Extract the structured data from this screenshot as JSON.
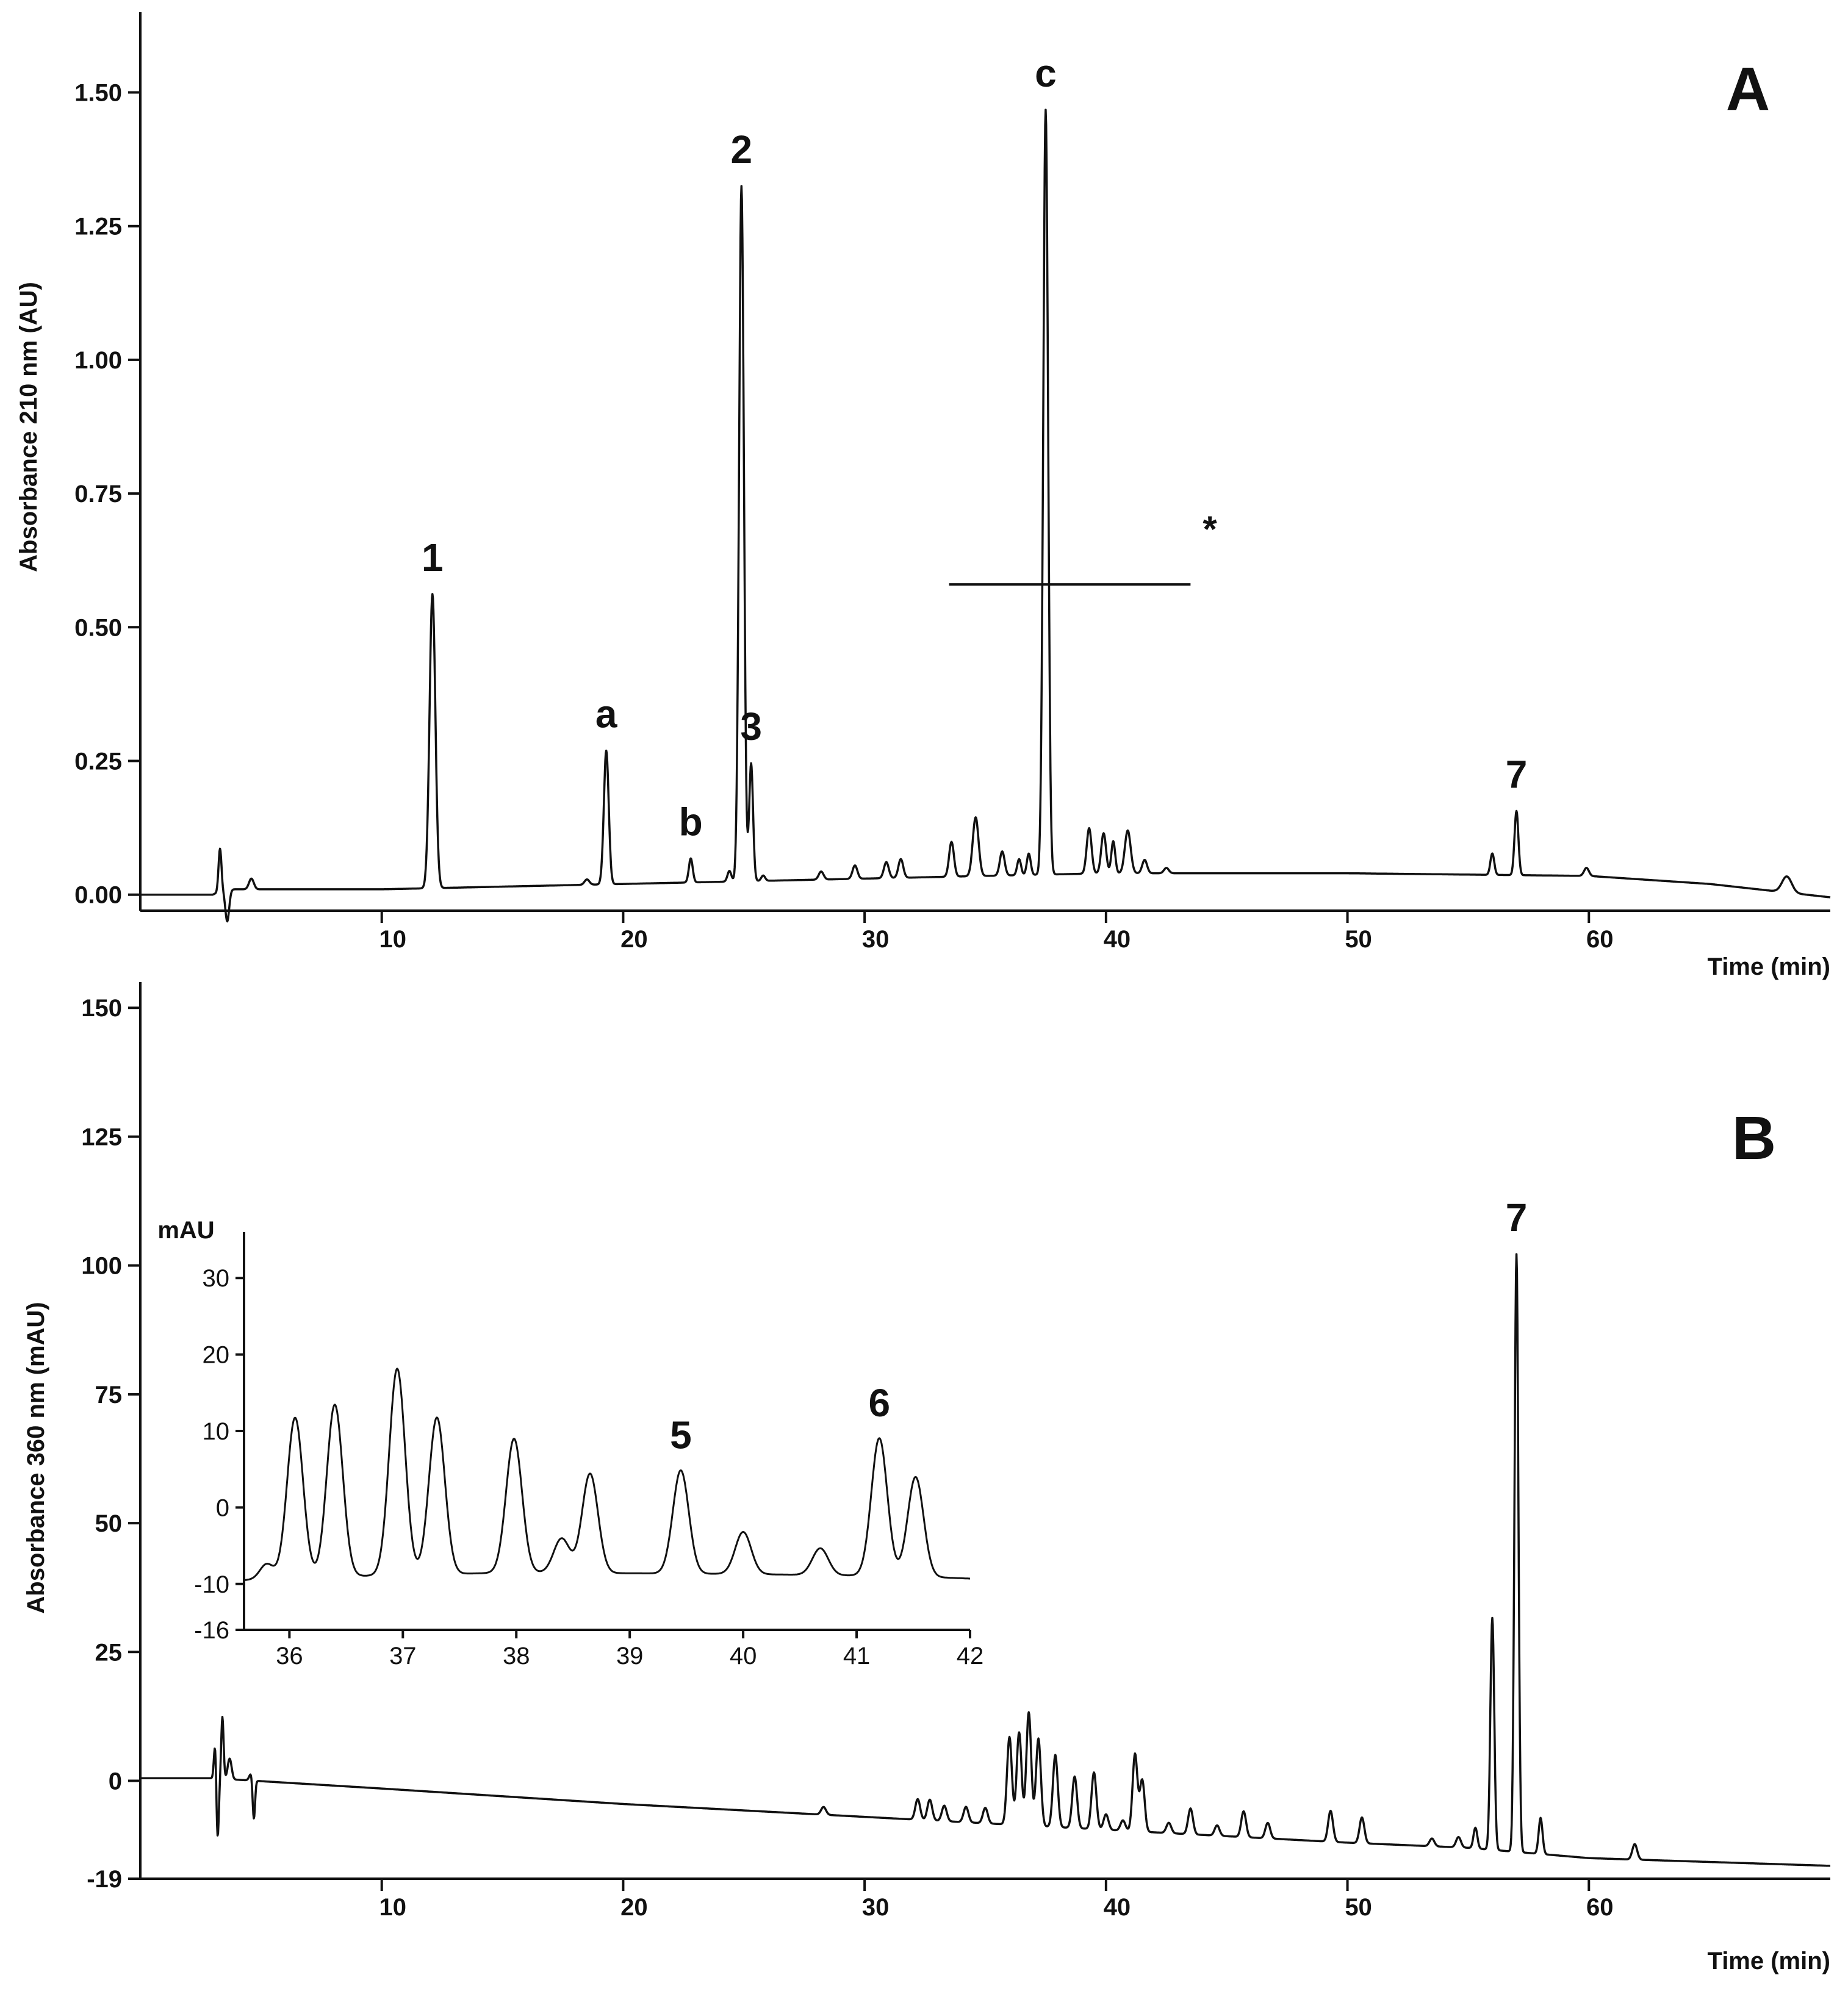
{
  "chart_data": [
    {
      "panel": "A",
      "type": "line",
      "title": "A",
      "xlabel": "Time (min)",
      "ylabel": "Absorbance 210 nm  (AU)",
      "xlim": [
        0,
        70
      ],
      "ylim": [
        -0.03,
        1.65
      ],
      "xticks": [
        10,
        20,
        30,
        40,
        50,
        60
      ],
      "xtick_labels": [
        "10",
        "20",
        "30",
        "40",
        "50",
        "60"
      ],
      "yticks": [
        0,
        0.25,
        0.5,
        0.75,
        1.0,
        1.25,
        1.5
      ],
      "ytick_labels": [
        "0.00",
        "0.25",
        "0.50",
        "0.75",
        "1.00",
        "1.25",
        "1.50"
      ],
      "baseline": [
        [
          0,
          0.0
        ],
        [
          3.0,
          0.0
        ],
        [
          3.5,
          0.01
        ],
        [
          10,
          0.01
        ],
        [
          20,
          0.02
        ],
        [
          30,
          0.03
        ],
        [
          40,
          0.04
        ],
        [
          50,
          0.04
        ],
        [
          60,
          0.035
        ],
        [
          65,
          0.02
        ],
        [
          70,
          -0.005
        ]
      ],
      "peaks": [
        {
          "x": 3.3,
          "h": 0.08,
          "w": 0.06,
          "label": ""
        },
        {
          "x": 3.6,
          "h": -0.06,
          "w": 0.08,
          "label": ""
        },
        {
          "x": 4.6,
          "h": 0.02,
          "w": 0.1,
          "label": ""
        },
        {
          "x": 12.1,
          "h": 0.55,
          "w": 0.12,
          "label": "1"
        },
        {
          "x": 18.5,
          "h": 0.01,
          "w": 0.1,
          "label": ""
        },
        {
          "x": 19.3,
          "h": 0.25,
          "w": 0.1,
          "label": "a"
        },
        {
          "x": 22.8,
          "h": 0.045,
          "w": 0.08,
          "label": "b"
        },
        {
          "x": 24.4,
          "h": 0.02,
          "w": 0.08,
          "label": ""
        },
        {
          "x": 24.9,
          "h": 1.3,
          "w": 0.1,
          "label": "2"
        },
        {
          "x": 25.3,
          "h": 0.22,
          "w": 0.08,
          "label": "3"
        },
        {
          "x": 25.8,
          "h": 0.01,
          "w": 0.08,
          "label": ""
        },
        {
          "x": 28.2,
          "h": 0.015,
          "w": 0.1,
          "label": ""
        },
        {
          "x": 29.6,
          "h": 0.025,
          "w": 0.1,
          "label": ""
        },
        {
          "x": 30.9,
          "h": 0.03,
          "w": 0.1,
          "label": ""
        },
        {
          "x": 31.5,
          "h": 0.035,
          "w": 0.1,
          "label": ""
        },
        {
          "x": 33.6,
          "h": 0.065,
          "w": 0.1,
          "label": ""
        },
        {
          "x": 34.6,
          "h": 0.11,
          "w": 0.12,
          "label": ""
        },
        {
          "x": 35.7,
          "h": 0.045,
          "w": 0.1,
          "label": ""
        },
        {
          "x": 36.4,
          "h": 0.03,
          "w": 0.08,
          "label": ""
        },
        {
          "x": 36.8,
          "h": 0.04,
          "w": 0.08,
          "label": ""
        },
        {
          "x": 37.5,
          "h": 1.43,
          "w": 0.1,
          "label": "c"
        },
        {
          "x": 39.3,
          "h": 0.085,
          "w": 0.1,
          "label": ""
        },
        {
          "x": 39.9,
          "h": 0.075,
          "w": 0.1,
          "label": ""
        },
        {
          "x": 40.3,
          "h": 0.06,
          "w": 0.08,
          "label": ""
        },
        {
          "x": 40.9,
          "h": 0.08,
          "w": 0.12,
          "label": ""
        },
        {
          "x": 41.6,
          "h": 0.025,
          "w": 0.1,
          "label": ""
        },
        {
          "x": 42.5,
          "h": 0.01,
          "w": 0.1,
          "label": ""
        },
        {
          "x": 56.0,
          "h": 0.04,
          "w": 0.08,
          "label": ""
        },
        {
          "x": 57.0,
          "h": 0.12,
          "w": 0.08,
          "label": "7"
        },
        {
          "x": 59.9,
          "h": 0.015,
          "w": 0.1,
          "label": ""
        },
        {
          "x": 68.2,
          "h": 0.03,
          "w": 0.2,
          "label": ""
        }
      ],
      "annotations": [
        {
          "text": "*",
          "x": 44.3,
          "y": 0.66
        }
      ],
      "marker_line": {
        "x": [
          33.5,
          43.5
        ],
        "y": 0.58
      }
    },
    {
      "panel": "B",
      "type": "line",
      "title": "B",
      "xlabel": "Time (min)",
      "ylabel": "Absorbance 360 nm  (mAU)",
      "xlim": [
        0,
        70
      ],
      "ylim": [
        -19,
        155
      ],
      "xticks": [
        10,
        20,
        30,
        40,
        50,
        60
      ],
      "xtick_labels": [
        "10",
        "20",
        "30",
        "40",
        "50",
        "60"
      ],
      "yticks": [
        -19,
        0,
        25,
        50,
        75,
        100,
        125,
        150
      ],
      "ytick_labels": [
        "-19",
        "0",
        "25",
        "50",
        "75",
        "100",
        "125",
        "150"
      ],
      "baseline": [
        [
          0,
          0.5
        ],
        [
          3.0,
          0.5
        ],
        [
          10,
          -1.5
        ],
        [
          20,
          -4.5
        ],
        [
          30,
          -7
        ],
        [
          40,
          -9.5
        ],
        [
          50,
          -12
        ],
        [
          55,
          -13
        ],
        [
          60,
          -15
        ],
        [
          70,
          -16.5
        ]
      ],
      "peaks": [
        {
          "x": 3.1,
          "h": 7,
          "w": 0.05,
          "label": ""
        },
        {
          "x": 3.2,
          "h": -12,
          "w": 0.05,
          "label": ""
        },
        {
          "x": 3.4,
          "h": 12,
          "w": 0.05,
          "label": ""
        },
        {
          "x": 3.7,
          "h": 4,
          "w": 0.08,
          "label": ""
        },
        {
          "x": 4.6,
          "h": 1.5,
          "w": 0.08,
          "label": ""
        },
        {
          "x": 4.7,
          "h": -8,
          "w": 0.05,
          "label": ""
        },
        {
          "x": 28.3,
          "h": 1.5,
          "w": 0.1,
          "label": ""
        },
        {
          "x": 32.2,
          "h": 4,
          "w": 0.1,
          "label": ""
        },
        {
          "x": 32.7,
          "h": 4,
          "w": 0.1,
          "label": ""
        },
        {
          "x": 33.3,
          "h": 3,
          "w": 0.1,
          "label": ""
        },
        {
          "x": 34.2,
          "h": 3,
          "w": 0.1,
          "label": ""
        },
        {
          "x": 35.0,
          "h": 3,
          "w": 0.1,
          "label": ""
        },
        {
          "x": 36.0,
          "h": 17,
          "w": 0.1,
          "label": ""
        },
        {
          "x": 36.4,
          "h": 18,
          "w": 0.1,
          "label": ""
        },
        {
          "x": 36.8,
          "h": 22,
          "w": 0.1,
          "label": ""
        },
        {
          "x": 37.2,
          "h": 17,
          "w": 0.1,
          "label": ""
        },
        {
          "x": 37.9,
          "h": 14,
          "w": 0.1,
          "label": ""
        },
        {
          "x": 38.7,
          "h": 10,
          "w": 0.1,
          "label": ""
        },
        {
          "x": 39.5,
          "h": 11,
          "w": 0.1,
          "label": ""
        },
        {
          "x": 40.0,
          "h": 3,
          "w": 0.1,
          "label": ""
        },
        {
          "x": 40.7,
          "h": 2,
          "w": 0.1,
          "label": ""
        },
        {
          "x": 41.2,
          "h": 15,
          "w": 0.1,
          "label": ""
        },
        {
          "x": 41.5,
          "h": 10,
          "w": 0.1,
          "label": ""
        },
        {
          "x": 42.6,
          "h": 2,
          "w": 0.1,
          "label": ""
        },
        {
          "x": 43.5,
          "h": 5,
          "w": 0.1,
          "label": ""
        },
        {
          "x": 44.6,
          "h": 2,
          "w": 0.1,
          "label": ""
        },
        {
          "x": 45.7,
          "h": 5,
          "w": 0.1,
          "label": ""
        },
        {
          "x": 46.7,
          "h": 3,
          "w": 0.1,
          "label": ""
        },
        {
          "x": 49.3,
          "h": 6,
          "w": 0.1,
          "label": ""
        },
        {
          "x": 50.6,
          "h": 5,
          "w": 0.1,
          "label": ""
        },
        {
          "x": 53.5,
          "h": 1.5,
          "w": 0.1,
          "label": ""
        },
        {
          "x": 54.6,
          "h": 2,
          "w": 0.1,
          "label": ""
        },
        {
          "x": 55.3,
          "h": 4,
          "w": 0.08,
          "label": ""
        },
        {
          "x": 56.0,
          "h": 45,
          "w": 0.08,
          "label": ""
        },
        {
          "x": 57.0,
          "h": 116,
          "w": 0.08,
          "label": "7"
        },
        {
          "x": 58.0,
          "h": 7,
          "w": 0.08,
          "label": ""
        },
        {
          "x": 61.9,
          "h": 3,
          "w": 0.1,
          "label": ""
        }
      ],
      "inset": {
        "ylabel": "mAU",
        "xlim": [
          35.6,
          42
        ],
        "ylim": [
          -16,
          36
        ],
        "xticks": [
          36,
          37,
          38,
          39,
          40,
          41,
          42
        ],
        "xtick_labels": [
          "36",
          "37",
          "38",
          "39",
          "40",
          "41",
          "42"
        ],
        "yticks": [
          -16,
          -10,
          0,
          10,
          20,
          30
        ],
        "ytick_labels": [
          "-16",
          "-10",
          "0",
          "10",
          "20",
          "30"
        ],
        "baseline": [
          [
            35.6,
            -9.5
          ],
          [
            36.5,
            -9
          ],
          [
            38,
            -8.5
          ],
          [
            40,
            -8.7
          ],
          [
            41.5,
            -9
          ],
          [
            42,
            -9.3
          ]
        ],
        "peaks": [
          {
            "x": 35.8,
            "h": 2,
            "w": 0.06,
            "label": ""
          },
          {
            "x": 36.05,
            "h": 21,
            "w": 0.07,
            "label": ""
          },
          {
            "x": 36.4,
            "h": 22.5,
            "w": 0.07,
            "label": ""
          },
          {
            "x": 36.95,
            "h": 27,
            "w": 0.07,
            "label": ""
          },
          {
            "x": 37.3,
            "h": 20.5,
            "w": 0.07,
            "label": ""
          },
          {
            "x": 37.98,
            "h": 17.5,
            "w": 0.07,
            "label": ""
          },
          {
            "x": 38.4,
            "h": 4.5,
            "w": 0.07,
            "label": ""
          },
          {
            "x": 38.65,
            "h": 13,
            "w": 0.07,
            "label": ""
          },
          {
            "x": 39.45,
            "h": 13.5,
            "w": 0.07,
            "label": "5"
          },
          {
            "x": 40.0,
            "h": 5.5,
            "w": 0.07,
            "label": ""
          },
          {
            "x": 40.68,
            "h": 3.5,
            "w": 0.07,
            "label": ""
          },
          {
            "x": 41.2,
            "h": 18,
            "w": 0.07,
            "label": "6"
          },
          {
            "x": 41.52,
            "h": 13,
            "w": 0.07,
            "label": ""
          }
        ]
      }
    }
  ]
}
